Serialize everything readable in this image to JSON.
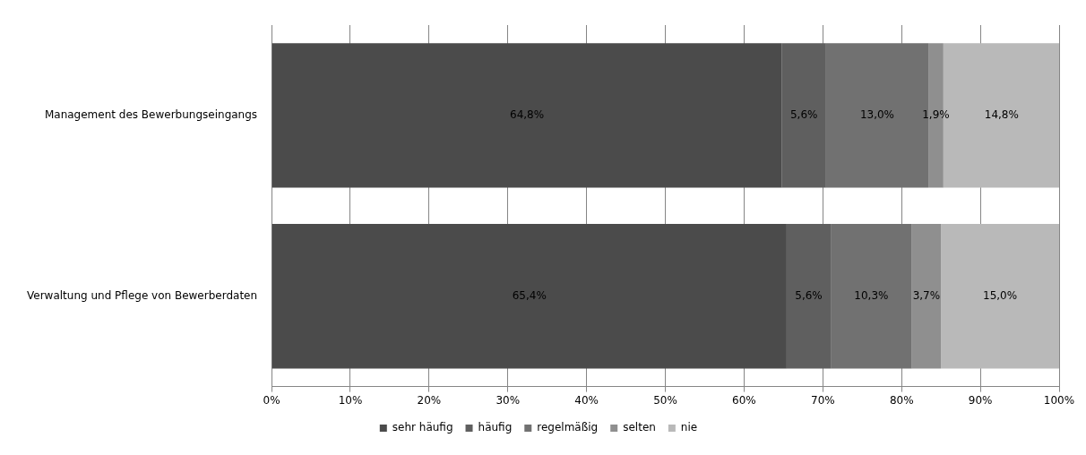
{
  "chart_data": {
    "type": "bar",
    "orientation": "horizontal",
    "stacked": true,
    "categories": [
      "Management des Bewerbungseingangs",
      "Verwaltung und Pflege von Bewerberdaten"
    ],
    "series": [
      {
        "name": "sehr häufig",
        "color": "#4b4b4b",
        "values": [
          64.8,
          65.4
        ],
        "value_labels": [
          "64,8%",
          "65,4%"
        ]
      },
      {
        "name": "häufig",
        "color": "#5f5f5f",
        "values": [
          5.6,
          5.6
        ],
        "value_labels": [
          "5,6%",
          "5,6%"
        ]
      },
      {
        "name": "regelmäßig",
        "color": "#717171",
        "values": [
          13.0,
          10.3
        ],
        "value_labels": [
          "13,0%",
          "10,3%"
        ]
      },
      {
        "name": "selten",
        "color": "#8f8f8f",
        "values": [
          1.9,
          3.7
        ],
        "value_labels": [
          "1,9%",
          "3,7%"
        ]
      },
      {
        "name": "nie",
        "color": "#b9b9b9",
        "values": [
          14.8,
          15.0
        ],
        "value_labels": [
          "14,8%",
          "15,0%"
        ]
      }
    ],
    "xlim": [
      0,
      100
    ],
    "xticks": [
      {
        "value": 0,
        "label": "0%"
      },
      {
        "value": 10,
        "label": "10%"
      },
      {
        "value": 20,
        "label": "20%"
      },
      {
        "value": 30,
        "label": "30%"
      },
      {
        "value": 40,
        "label": "40%"
      },
      {
        "value": 50,
        "label": "50%"
      },
      {
        "value": 60,
        "label": "60%"
      },
      {
        "value": 70,
        "label": "70%"
      },
      {
        "value": 80,
        "label": "80%"
      },
      {
        "value": 90,
        "label": "90%"
      },
      {
        "value": 100,
        "label": "100%"
      }
    ],
    "grid": "x",
    "legend": "bottom"
  }
}
